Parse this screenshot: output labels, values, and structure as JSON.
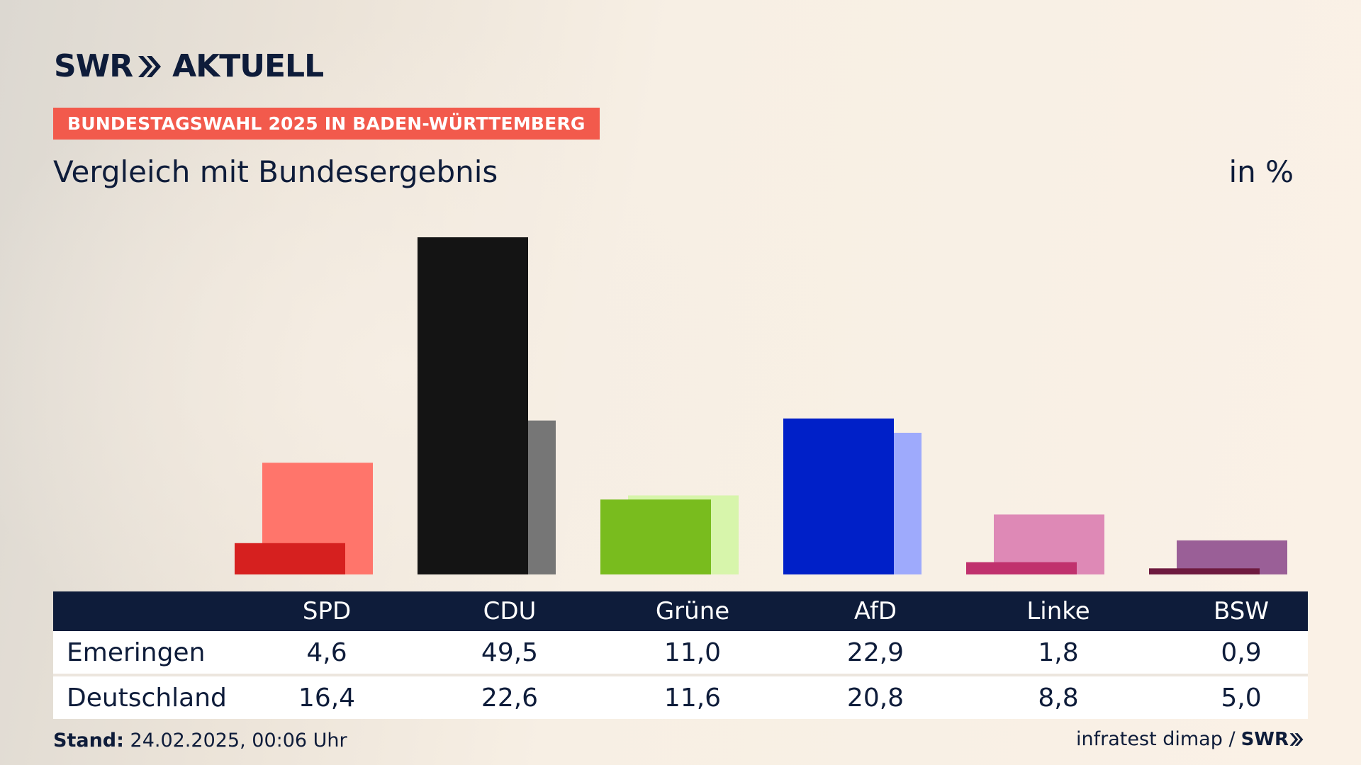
{
  "header": {
    "brand_left": "SWR",
    "brand_right": "AKTUELL",
    "badge": "BUNDESTAGSWAHL 2025 IN BADEN-WÜRTTEMBERG",
    "subtitle": "Vergleich mit Bundesergebnis",
    "unit": "in %"
  },
  "colors": {
    "navy": "#0e1c3a",
    "badge": "#f25a4c"
  },
  "chart_data": {
    "type": "bar",
    "title": "Vergleich mit Bundesergebnis",
    "ylabel": "in %",
    "categories": [
      "SPD",
      "CDU",
      "Grüne",
      "AfD",
      "Linke",
      "BSW"
    ],
    "ylim": [
      0,
      50
    ],
    "series": [
      {
        "name": "Emeringen",
        "values": [
          4.6,
          49.5,
          11.0,
          22.9,
          1.8,
          0.9
        ],
        "labels": [
          "4,6",
          "49,5",
          "11,0",
          "22,9",
          "1,8",
          "0,9"
        ],
        "colors": [
          "#d6201f",
          "#141414",
          "#79bc1e",
          "#0020c8",
          "#c0316d",
          "#6e1a3f"
        ]
      },
      {
        "name": "Deutschland",
        "values": [
          16.4,
          22.6,
          11.6,
          20.8,
          8.8,
          5.0
        ],
        "labels": [
          "16,4",
          "22,6",
          "11,6",
          "20,8",
          "8,8",
          "5,0"
        ],
        "colors": [
          "#ff756b",
          "#767676",
          "#d7f5ab",
          "#9eaafc",
          "#de89b6",
          "#9a5f97"
        ]
      }
    ]
  },
  "table": {
    "row_labels": [
      "Emeringen",
      "Deutschland"
    ]
  },
  "footer": {
    "stand_label": "Stand:",
    "stand_value": "24.02.2025, 00:06 Uhr",
    "source": "infratest dimap /",
    "source_brand": "SWR"
  }
}
